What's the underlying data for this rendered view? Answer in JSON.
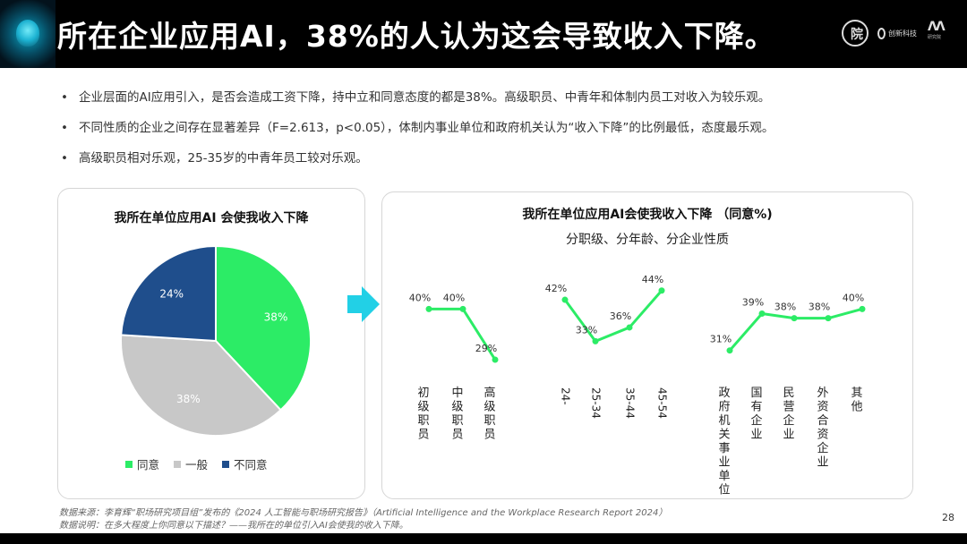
{
  "header": {
    "title": "所在企业应用AI，38%的人认为这会导致收入下降。"
  },
  "bullets": [
    "企业层面的AI应用引入，是否会造成工资下降，持中立和同意态度的都是38%。高级职员、中青年和体制内员工对收入为较乐观。",
    "不同性质的企业之间存在显著差异（F=2.613，p<0.05），体制内事业单位和政府机关认为“收入下降”的比例最低，态度最乐观。",
    "高级职员相对乐观，25-35岁的中青年员工较对乐观。"
  ],
  "colors": {
    "agree": "#2cec66",
    "neutral": "#c8c8c8",
    "disagree": "#1f4e8c",
    "line": "#2cec66",
    "arrow": "#22d0e6"
  },
  "chart_data": [
    {
      "type": "pie",
      "title": "我所在单位应用AI  会使我收入下降",
      "categories": [
        "同意",
        "一般",
        "不同意"
      ],
      "values": [
        38,
        38,
        24
      ],
      "labels": [
        "38%",
        "38%",
        "24%"
      ],
      "legend_position": "bottom"
    },
    {
      "type": "line",
      "title": "我所在单位应用AI会使我收入下降 （同意%)",
      "subtitle": "分职级、分年龄、分企业性质",
      "groups": [
        {
          "categories": [
            "初级职员",
            "中级职员",
            "高级职员"
          ],
          "values": [
            40,
            40,
            29
          ],
          "labels": [
            "40%",
            "40%",
            "29%"
          ]
        },
        {
          "categories": [
            "24-",
            "25-34",
            "35-44",
            "45-54"
          ],
          "values": [
            42,
            33,
            36,
            44
          ],
          "labels": [
            "42%",
            "33%",
            "36%",
            "44%"
          ]
        },
        {
          "categories": [
            "政府机关事业单位",
            "国有企业",
            "民营企业",
            "外资合资企业",
            "其他"
          ],
          "values": [
            31,
            39,
            38,
            38,
            40
          ],
          "labels": [
            "31%",
            "39%",
            "38%",
            "38%",
            "40%"
          ]
        }
      ]
    }
  ],
  "footer": {
    "source": "数据来源：李育辉“职场研究项目组”发布的《2024 人工智能与职场研究报告》（Artificial Intelligence and the Workplace Research Report 2024）",
    "note": "数据说明：在多大程度上你同意以下描述？——我所在的单位引入AI会使我的收入下降。",
    "page": "28"
  }
}
